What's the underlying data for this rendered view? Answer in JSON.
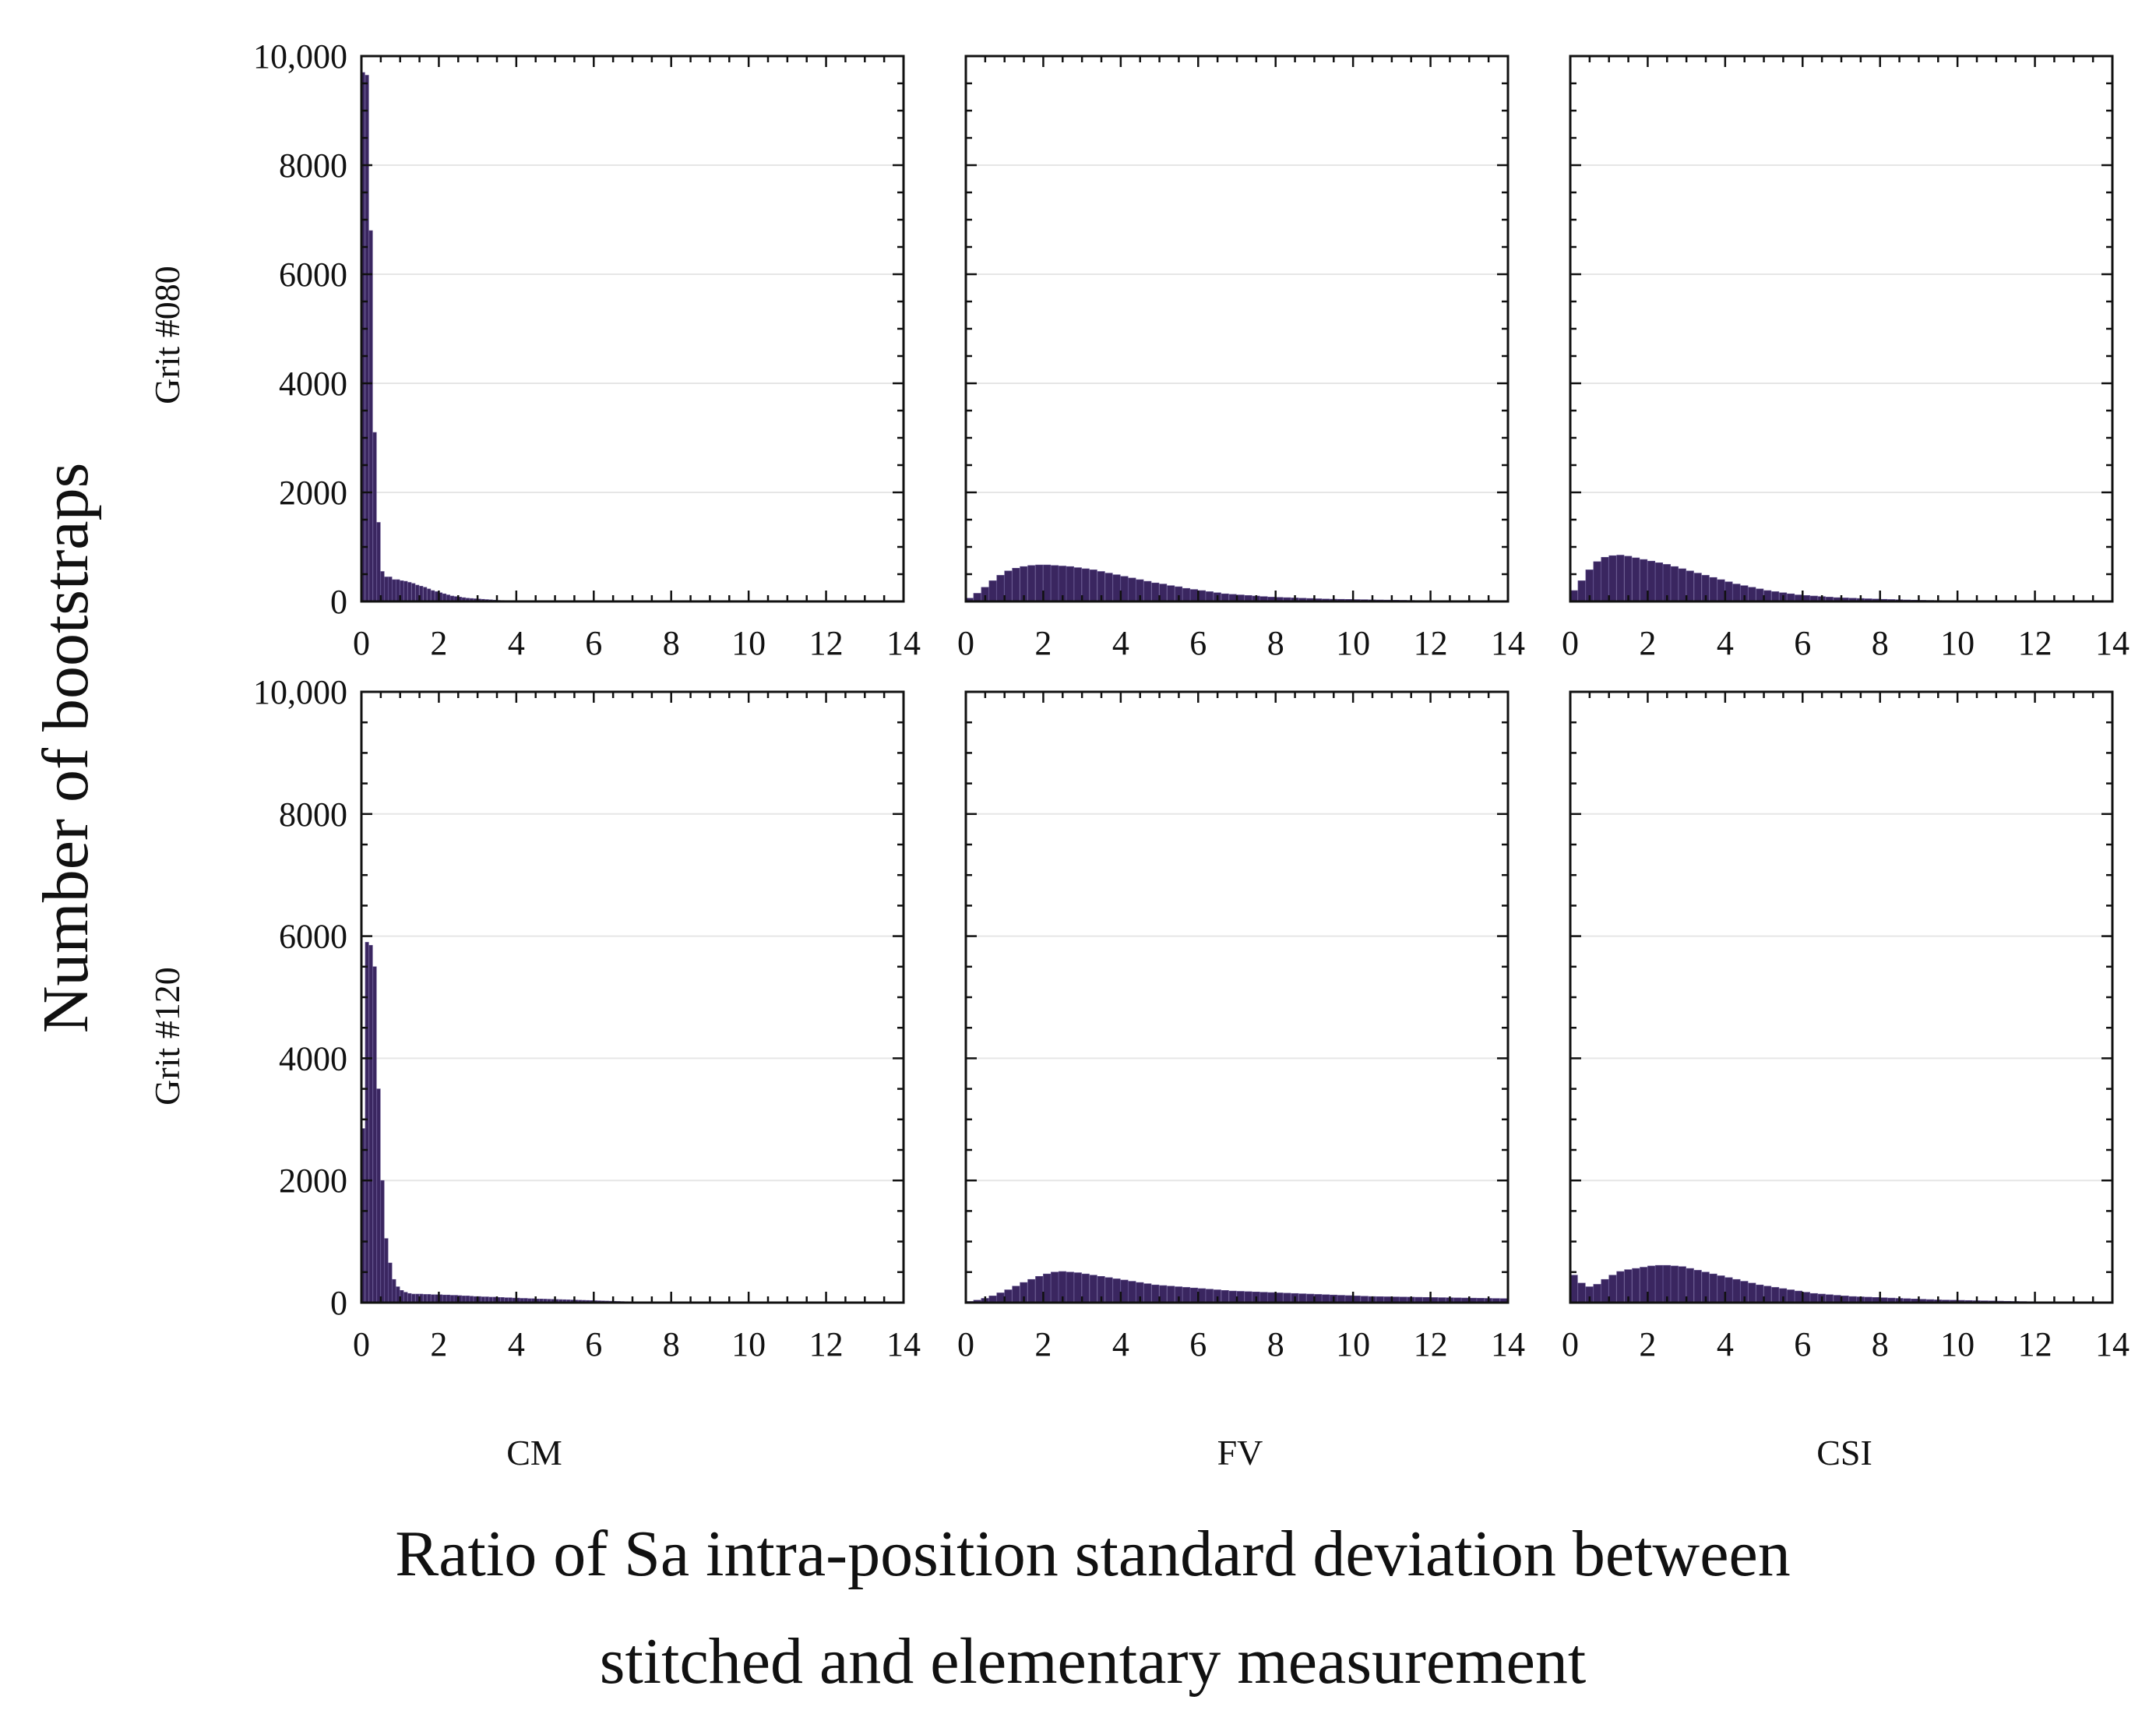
{
  "figure": {
    "ylabel": "Number of bootstraps",
    "xlabel_line1": "Ratio of Sa intra-position standard deviation between",
    "xlabel_line2": "stitched and elementary measurement",
    "bar_color": "#3a2660",
    "row_labels": [
      "Grit #080",
      "Grit #120"
    ],
    "col_labels": [
      "CM",
      "FV",
      "CSI"
    ]
  },
  "chart_data": [
    {
      "type": "bar",
      "title": "CM",
      "row": "Grit #080",
      "xlabel": "CM",
      "ylabel": "Grit #080",
      "xlim": [
        0,
        14
      ],
      "ylim": [
        0,
        10000
      ],
      "bin_width": 0.1,
      "x": [
        0.05,
        0.15,
        0.25,
        0.35,
        0.45,
        0.55,
        0.65,
        0.75,
        0.85,
        0.95,
        1.05,
        1.15,
        1.25,
        1.35,
        1.45,
        1.55,
        1.65,
        1.75,
        1.85,
        1.95,
        2.05,
        2.15,
        2.25,
        2.35,
        2.45,
        2.55,
        2.65,
        2.75,
        2.85,
        2.95,
        3.05,
        3.15,
        3.25,
        3.35,
        3.45,
        3.55,
        3.65,
        3.75,
        3.85,
        3.95
      ],
      "values": [
        9700,
        9650,
        6800,
        3100,
        1450,
        550,
        450,
        450,
        400,
        400,
        380,
        370,
        350,
        330,
        300,
        280,
        260,
        230,
        200,
        180,
        160,
        140,
        120,
        100,
        90,
        80,
        70,
        60,
        55,
        50,
        45,
        40,
        35,
        30,
        25,
        20,
        18,
        15,
        12,
        10
      ],
      "xticks": [
        "0",
        "2",
        "4",
        "6",
        "8",
        "10",
        "12",
        "14"
      ],
      "yticks": [
        "0",
        "2000",
        "4000",
        "6000",
        "8000",
        "10,000"
      ]
    },
    {
      "type": "bar",
      "title": "FV",
      "row": "Grit #080",
      "xlabel": "FV",
      "ylabel": "Grit #080",
      "xlim": [
        0,
        14
      ],
      "ylim": [
        0,
        10000
      ],
      "bin_width": 0.2,
      "x": [
        0.1,
        0.3,
        0.5,
        0.7,
        0.9,
        1.1,
        1.3,
        1.5,
        1.7,
        1.9,
        2.1,
        2.3,
        2.5,
        2.7,
        2.9,
        3.1,
        3.3,
        3.5,
        3.7,
        3.9,
        4.1,
        4.3,
        4.5,
        4.7,
        4.9,
        5.1,
        5.3,
        5.5,
        5.7,
        5.9,
        6.1,
        6.3,
        6.5,
        6.7,
        6.9,
        7.1,
        7.3,
        7.5,
        7.7,
        7.9,
        8.1,
        8.3,
        8.5,
        8.7,
        8.9,
        9.1,
        9.3,
        9.5,
        9.7,
        9.9,
        10.1,
        10.3,
        10.5,
        10.7,
        10.9,
        11.1,
        11.3,
        11.5,
        11.7,
        11.9,
        12.1,
        12.3,
        12.5,
        12.7,
        12.9,
        13.1,
        13.3,
        13.5,
        13.7,
        13.9
      ],
      "values": [
        60,
        150,
        260,
        380,
        480,
        560,
        610,
        640,
        660,
        670,
        670,
        660,
        650,
        640,
        620,
        600,
        580,
        550,
        520,
        490,
        460,
        430,
        400,
        370,
        340,
        320,
        290,
        270,
        240,
        220,
        200,
        180,
        160,
        140,
        130,
        120,
        110,
        100,
        90,
        80,
        75,
        70,
        65,
        60,
        55,
        50,
        45,
        42,
        40,
        38,
        35,
        33,
        30,
        28,
        26,
        24,
        22,
        20,
        18,
        16,
        15,
        14,
        13,
        12,
        11,
        10,
        9,
        8,
        7,
        6
      ],
      "xticks": [
        "0",
        "2",
        "4",
        "6",
        "8",
        "10",
        "12",
        "14"
      ],
      "yticks": []
    },
    {
      "type": "bar",
      "title": "CSI",
      "row": "Grit #080",
      "xlabel": "CSI",
      "ylabel": "Grit #080",
      "xlim": [
        0,
        14
      ],
      "ylim": [
        0,
        10000
      ],
      "bin_width": 0.2,
      "x": [
        0.1,
        0.3,
        0.5,
        0.7,
        0.9,
        1.1,
        1.3,
        1.5,
        1.7,
        1.9,
        2.1,
        2.3,
        2.5,
        2.7,
        2.9,
        3.1,
        3.3,
        3.5,
        3.7,
        3.9,
        4.1,
        4.3,
        4.5,
        4.7,
        4.9,
        5.1,
        5.3,
        5.5,
        5.7,
        5.9,
        6.1,
        6.3,
        6.5,
        6.7,
        6.9,
        7.1,
        7.3,
        7.5,
        7.7,
        7.9,
        8.1,
        8.3,
        8.5,
        8.7,
        8.9,
        9.1,
        9.3,
        9.5,
        9.7,
        9.9,
        10.1,
        10.3,
        10.5,
        10.7,
        10.9,
        11.1,
        11.3,
        11.5,
        11.7,
        11.9,
        12.1,
        12.3,
        12.5,
        12.7,
        12.9,
        13.1,
        13.3,
        13.5,
        13.7,
        13.9
      ],
      "values": [
        200,
        380,
        580,
        730,
        810,
        840,
        850,
        830,
        800,
        770,
        740,
        710,
        680,
        640,
        600,
        560,
        520,
        480,
        440,
        400,
        360,
        320,
        290,
        260,
        230,
        200,
        180,
        160,
        140,
        120,
        110,
        100,
        90,
        80,
        70,
        65,
        60,
        55,
        50,
        45,
        40,
        36,
        32,
        28,
        25,
        22,
        20,
        18,
        16,
        14,
        13,
        12,
        11,
        10,
        9,
        8,
        7,
        6,
        6,
        5,
        5,
        4,
        4,
        3,
        3,
        3,
        2,
        2,
        2,
        2
      ],
      "xticks": [
        "0",
        "2",
        "4",
        "6",
        "8",
        "10",
        "12",
        "14"
      ],
      "yticks": []
    },
    {
      "type": "bar",
      "title": "CM",
      "row": "Grit #120",
      "xlabel": "CM",
      "ylabel": "Grit #120",
      "xlim": [
        0,
        14
      ],
      "ylim": [
        0,
        10000
      ],
      "bin_width": 0.1,
      "x": [
        0.05,
        0.15,
        0.25,
        0.35,
        0.45,
        0.55,
        0.65,
        0.75,
        0.85,
        0.95,
        1.05,
        1.15,
        1.25,
        1.35,
        1.45,
        1.55,
        1.65,
        1.75,
        1.85,
        1.95,
        2.05,
        2.15,
        2.25,
        2.35,
        2.45,
        2.55,
        2.65,
        2.75,
        2.85,
        2.95,
        3.05,
        3.15,
        3.25,
        3.35,
        3.45,
        3.55,
        3.65,
        3.75,
        3.85,
        3.95,
        4.05,
        4.15,
        4.25,
        4.35,
        4.45,
        4.55,
        4.65,
        4.75,
        4.85,
        4.95,
        5.05,
        5.15,
        5.25,
        5.35,
        5.45,
        5.55,
        5.65,
        5.75,
        5.85,
        5.95,
        6.05,
        6.15,
        6.25,
        6.35,
        6.45,
        6.55,
        6.65,
        6.75,
        6.85,
        6.95
      ],
      "values": [
        2850,
        5900,
        5850,
        5500,
        3500,
        2000,
        1050,
        650,
        380,
        260,
        200,
        170,
        150,
        140,
        140,
        140,
        135,
        135,
        130,
        130,
        130,
        125,
        125,
        120,
        120,
        115,
        110,
        110,
        105,
        100,
        100,
        95,
        95,
        90,
        90,
        85,
        85,
        80,
        80,
        75,
        75,
        70,
        70,
        65,
        65,
        60,
        60,
        58,
        56,
        54,
        52,
        50,
        48,
        46,
        44,
        42,
        40,
        38,
        36,
        34,
        32,
        30,
        28,
        26,
        24,
        22,
        20,
        18,
        16,
        14
      ],
      "xticks": [
        "0",
        "2",
        "4",
        "6",
        "8",
        "10",
        "12",
        "14"
      ],
      "yticks": [
        "0",
        "2000",
        "4000",
        "6000",
        "8000",
        "10,000"
      ]
    },
    {
      "type": "bar",
      "title": "FV",
      "row": "Grit #120",
      "xlabel": "FV",
      "ylabel": "Grit #120",
      "xlim": [
        0,
        14
      ],
      "ylim": [
        0,
        10000
      ],
      "bin_width": 0.2,
      "x": [
        0.1,
        0.3,
        0.5,
        0.7,
        0.9,
        1.1,
        1.3,
        1.5,
        1.7,
        1.9,
        2.1,
        2.3,
        2.5,
        2.7,
        2.9,
        3.1,
        3.3,
        3.5,
        3.7,
        3.9,
        4.1,
        4.3,
        4.5,
        4.7,
        4.9,
        5.1,
        5.3,
        5.5,
        5.7,
        5.9,
        6.1,
        6.3,
        6.5,
        6.7,
        6.9,
        7.1,
        7.3,
        7.5,
        7.7,
        7.9,
        8.1,
        8.3,
        8.5,
        8.7,
        8.9,
        9.1,
        9.3,
        9.5,
        9.7,
        9.9,
        10.1,
        10.3,
        10.5,
        10.7,
        10.9,
        11.1,
        11.3,
        11.5,
        11.7,
        11.9,
        12.1,
        12.3,
        12.5,
        12.7,
        12.9,
        13.1,
        13.3,
        13.5,
        13.7,
        13.9
      ],
      "values": [
        20,
        40,
        70,
        110,
        160,
        210,
        270,
        330,
        380,
        430,
        470,
        500,
        510,
        500,
        490,
        470,
        450,
        430,
        410,
        390,
        370,
        350,
        330,
        310,
        290,
        280,
        270,
        260,
        250,
        240,
        230,
        220,
        210,
        200,
        190,
        185,
        180,
        175,
        170,
        165,
        160,
        155,
        150,
        145,
        140,
        135,
        130,
        125,
        120,
        115,
        110,
        105,
        100,
        98,
        96,
        94,
        92,
        90,
        88,
        86,
        84,
        82,
        80,
        78,
        76,
        74,
        72,
        70,
        68,
        66
      ],
      "xticks": [
        "0",
        "2",
        "4",
        "6",
        "8",
        "10",
        "12",
        "14"
      ],
      "yticks": []
    },
    {
      "type": "bar",
      "title": "CSI",
      "row": "Grit #120",
      "xlabel": "CSI",
      "ylabel": "Grit #120",
      "xlim": [
        0,
        14
      ],
      "ylim": [
        0,
        10000
      ],
      "bin_width": 0.2,
      "x": [
        0.1,
        0.3,
        0.5,
        0.7,
        0.9,
        1.1,
        1.3,
        1.5,
        1.7,
        1.9,
        2.1,
        2.3,
        2.5,
        2.7,
        2.9,
        3.1,
        3.3,
        3.5,
        3.7,
        3.9,
        4.1,
        4.3,
        4.5,
        4.7,
        4.9,
        5.1,
        5.3,
        5.5,
        5.7,
        5.9,
        6.1,
        6.3,
        6.5,
        6.7,
        6.9,
        7.1,
        7.3,
        7.5,
        7.7,
        7.9,
        8.1,
        8.3,
        8.5,
        8.7,
        8.9,
        9.1,
        9.3,
        9.5,
        9.7,
        9.9,
        10.1,
        10.3,
        10.5,
        10.7,
        10.9,
        11.1,
        11.3,
        11.5,
        11.7,
        11.9,
        12.1,
        12.3,
        12.5,
        12.7,
        12.9,
        13.1,
        13.3,
        13.5,
        13.7,
        13.9
      ],
      "values": [
        450,
        320,
        260,
        300,
        380,
        450,
        510,
        540,
        560,
        580,
        600,
        610,
        610,
        600,
        590,
        560,
        530,
        500,
        470,
        440,
        410,
        380,
        350,
        320,
        290,
        270,
        250,
        230,
        210,
        190,
        170,
        150,
        140,
        130,
        120,
        110,
        100,
        95,
        90,
        85,
        80,
        75,
        70,
        65,
        60,
        55,
        50,
        45,
        42,
        40,
        38,
        35,
        32,
        30,
        28,
        25,
        22,
        20,
        18,
        16,
        14,
        12,
        10,
        9,
        8,
        7,
        6,
        5,
        4,
        3
      ],
      "xticks": [
        "0",
        "2",
        "4",
        "6",
        "8",
        "10",
        "12",
        "14"
      ],
      "yticks": []
    }
  ]
}
